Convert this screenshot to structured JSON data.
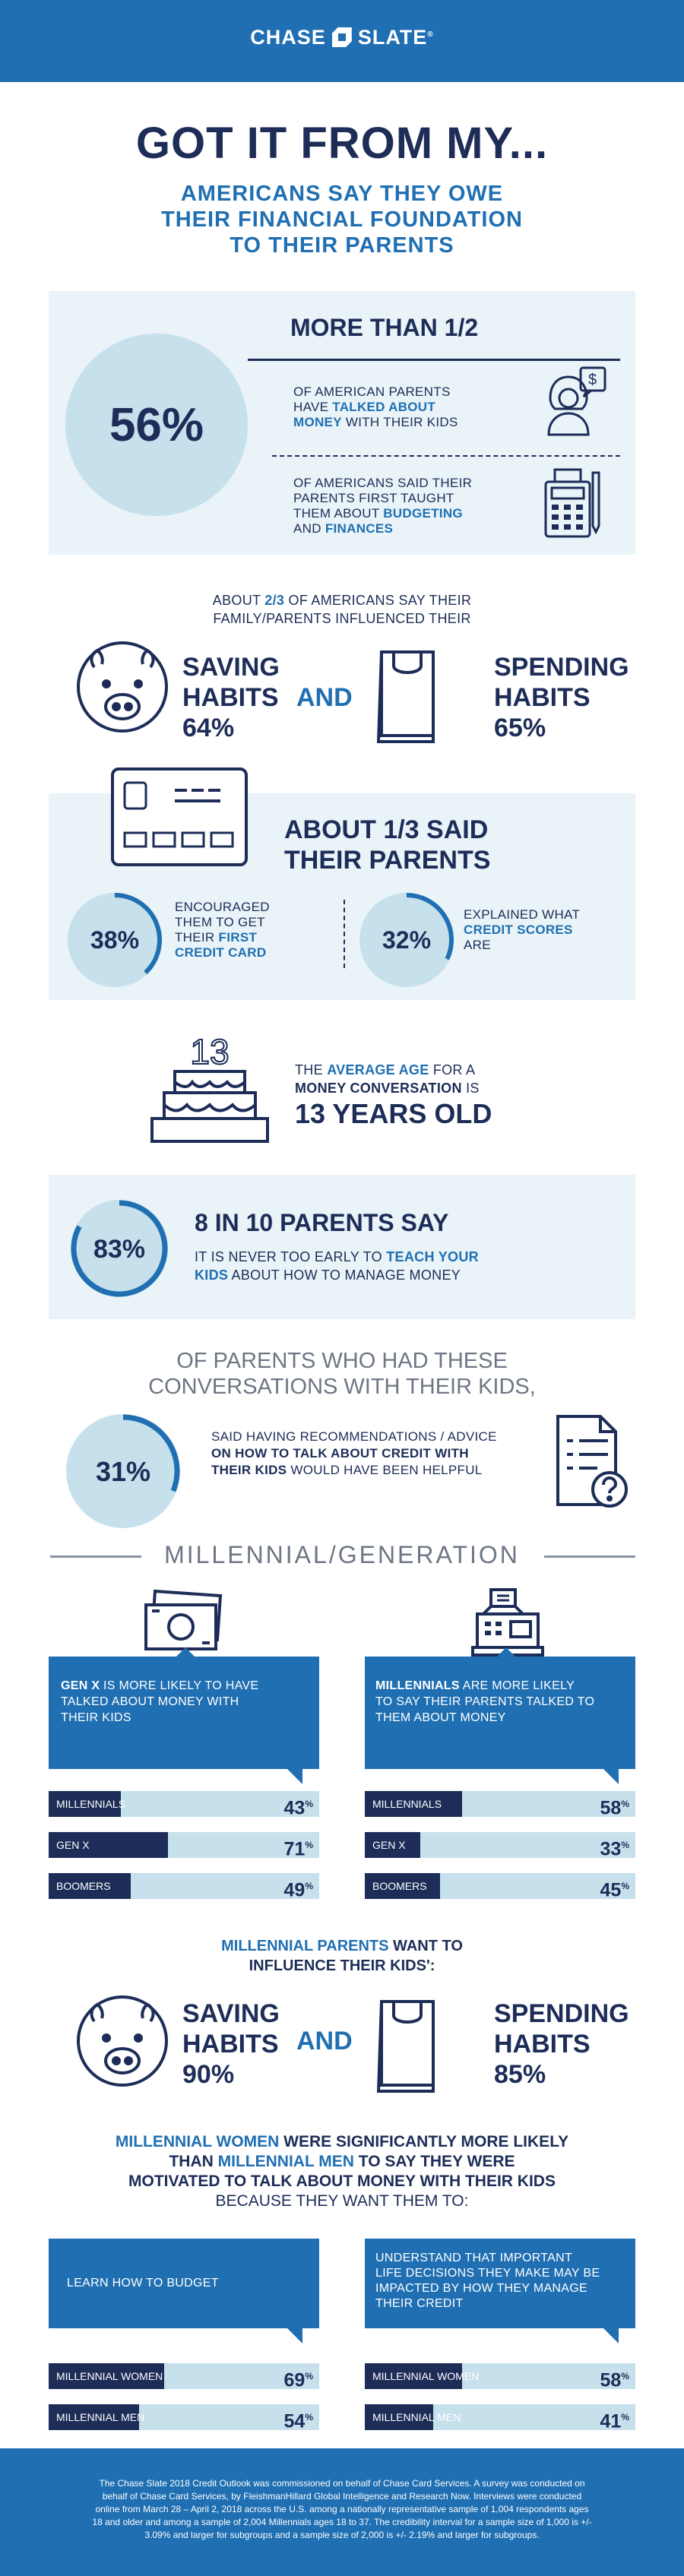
{
  "brand": {
    "left": "CHASE",
    "right": "SLATE",
    "tm": "®"
  },
  "hero": {
    "title": "GOT IT FROM MY...",
    "sub1": "AMERICANS SAY THEY OWE",
    "sub2": "THEIR FINANCIAL FOUNDATION",
    "sub3": "TO THEIR PARENTS"
  },
  "half": {
    "title": "MORE THAN 1/2",
    "pct": "56%",
    "a1": "OF AMERICAN PARENTS",
    "a2": "HAVE ",
    "a2b": "TALKED ABOUT",
    "a3b": "MONEY",
    "a3": " WITH THEIR KIDS",
    "b1": "OF AMERICANS SAID THEIR",
    "b2": "PARENTS FIRST TAUGHT",
    "b3": "THEM ABOUT ",
    "b3b": "BUDGETING",
    "b4": "AND ",
    "b4b": "FINANCES"
  },
  "twothirds": {
    "l1a": "ABOUT ",
    "l1b": "2/3",
    "l1c": " OF AMERICANS SAY THEIR",
    "l2": "FAMILY/PARENTS INFLUENCED THEIR",
    "saving1": "SAVING",
    "saving2": "HABITS",
    "saving_pct": "64%",
    "and": "AND",
    "spending1": "SPENDING",
    "spending2": "HABITS",
    "spending_pct": "65%"
  },
  "onethird": {
    "title1": "ABOUT 1/3 SAID",
    "title2": "THEIR PARENTS",
    "p1": "38%",
    "t1a": "ENCOURAGED",
    "t1b": "THEM TO GET",
    "t1c": "THEIR ",
    "t1d": "FIRST",
    "t1e": "CREDIT CARD",
    "p2": "32%",
    "t2a": "EXPLAINED WHAT",
    "t2b": "CREDIT SCORES",
    "t2c": "ARE",
    "p1_value": 38,
    "p2_value": 32
  },
  "age": {
    "cake": "13",
    "l1a": "THE ",
    "l1b": "AVERAGE AGE",
    "l1c": " FOR A",
    "l2a": "MONEY CONVERSATION",
    "l2b": " IS",
    "l3": "13 YEARS OLD"
  },
  "parents": {
    "pct": "83%",
    "value": 83,
    "title": "8 IN 10 PARENTS SAY",
    "l1a": "IT IS NEVER TOO EARLY TO ",
    "l1b": "TEACH YOUR",
    "l2a": "KIDS",
    "l2b": " ABOUT HOW TO MANAGE MONEY"
  },
  "convo": {
    "h1": "OF PARENTS WHO HAD THESE",
    "h2": "CONVERSATIONS WITH THEIR KIDS,",
    "pct": "31%",
    "value": 31,
    "l1": "SAID HAVING RECOMMENDATIONS / ADVICE",
    "l2": "ON HOW TO TALK ABOUT CREDIT WITH",
    "l3": "THEIR KIDS",
    "l3b": " WOULD HAVE BEEN HELPFUL"
  },
  "generation": {
    "title": "MILLENNIAL/GENERATION",
    "left_box": {
      "l1a": "GEN X",
      "l1b": " IS MORE LIKELY TO HAVE",
      "l2": "TALKED ABOUT MONEY WITH",
      "l3": "THEIR KIDS"
    },
    "right_box": {
      "l1a": "MILLENNIALS",
      "l1b": " ARE MORE LIKELY",
      "l2": "TO SAY THEIR PARENTS TALKED TO",
      "l3": "THEM ABOUT MONEY"
    },
    "left_bars": [
      {
        "label": "MILLENNIALS",
        "value": 43,
        "text": "43"
      },
      {
        "label": "GEN X",
        "value": 71,
        "text": "71"
      },
      {
        "label": "BOOMERS",
        "value": 49,
        "text": "49"
      }
    ],
    "right_bars": [
      {
        "label": "MILLENNIALS",
        "value": 58,
        "text": "58"
      },
      {
        "label": "GEN X",
        "value": 33,
        "text": "33"
      },
      {
        "label": "BOOMERS",
        "value": 45,
        "text": "45"
      }
    ],
    "pct_sign": "%"
  },
  "millparents": {
    "l1a": "MILLENNIAL PARENTS",
    "l1b": " WANT TO",
    "l2": "INFLUENCE THEIR KIDS':",
    "saving1": "SAVING",
    "saving2": "HABITS",
    "saving_pct": "90%",
    "and": "AND",
    "spending1": "SPENDING",
    "spending2": "HABITS",
    "spending_pct": "85%"
  },
  "women": {
    "l1a": "MILLENNIAL WOMEN",
    "l1b": " WERE SIGNIFICANTLY MORE LIKELY",
    "l2a": "THAN ",
    "l2b": "MILLENNIAL MEN",
    "l2c": " TO SAY THEY WERE",
    "l3": "MOTIVATED TO TALK ABOUT MONEY WITH THEIR KIDS",
    "l4": "BECAUSE THEY WANT THEM TO:",
    "left_box": "LEARN HOW TO BUDGET",
    "right_box": {
      "l1": "UNDERSTAND THAT IMPORTANT",
      "l2": "LIFE DECISIONS THEY MAKE MAY BE",
      "l3": "IMPACTED BY HOW THEY MANAGE",
      "l4": "THEIR CREDIT"
    },
    "left_bars": [
      {
        "label": "MILLENNIAL WOMEN",
        "value": 69,
        "text": "69"
      },
      {
        "label": "MILLENNIAL MEN",
        "value": 54,
        "text": "54"
      }
    ],
    "right_bars": [
      {
        "label": "MILLENNIAL WOMEN",
        "value": 58,
        "text": "58"
      },
      {
        "label": "MILLENNIAL MEN",
        "value": 41,
        "text": "41"
      }
    ]
  },
  "footer": {
    "l1": "The Chase Slate 2018 Credit Outlook was commissioned on behalf of Chase Card Services. A survey was conducted on",
    "l2": "behalf of Chase Card Services, by FleishmanHillard Global Intelligence and Research Now. Interviews were conducted",
    "l3": "online from March 28 – April 2, 2018 across the U.S. among a nationally representative sample of 1,004 respondents ages",
    "l4": "18 and older and among a sample of 2,004 Millennials ages 18 to 37. The credibility interval for a sample size of 1,000 is +/-",
    "l5": "3.09% and larger for subgroups and a sample size of 2,000 is +/- 2.19% and larger for subgroups."
  },
  "colors": {
    "navy": "#1d2d58",
    "blue": "#1f6fb2",
    "light": "#c6e0ec",
    "panel": "#e9f3f8"
  }
}
